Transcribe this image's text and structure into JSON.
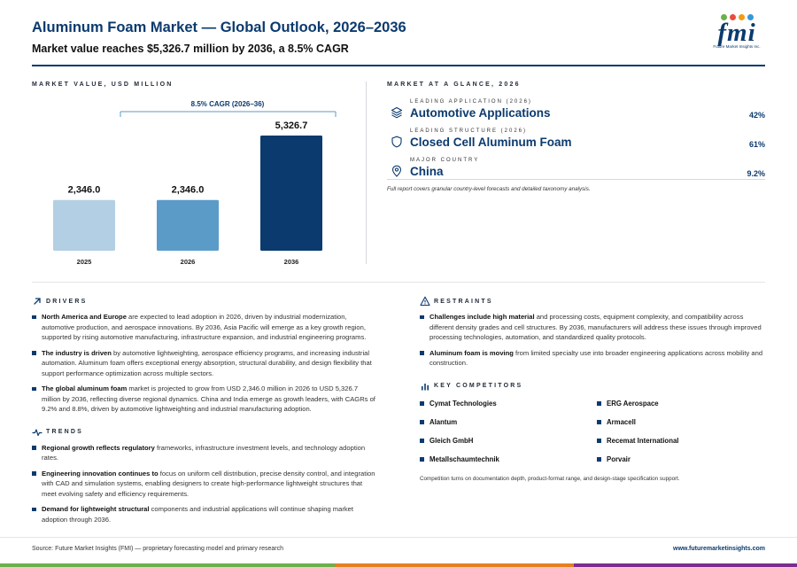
{
  "header": {
    "title": "Aluminum Foam Market — Global Outlook, 2026–2036",
    "subtitle": "Market value reaches $5,326.7 million by 2036, a 8.5% CAGR",
    "logo": {
      "word": "fmi",
      "tagline": "Future Market Insights Inc.",
      "dot_colors": [
        "#6ab04c",
        "#e84c3d",
        "#f39c12",
        "#3498db"
      ]
    }
  },
  "market_value": {
    "label": "MARKET VALUE, USD MILLION",
    "cagr_label": "8.5% CAGR (2026–36)"
  },
  "chart_data": {
    "type": "bar",
    "categories": [
      "2025",
      "2026",
      "2036"
    ],
    "values": [
      2346.0,
      2346.0,
      5326.7
    ],
    "value_labels": [
      "2,346.0",
      "2,346.0",
      "5,326.7"
    ],
    "colors": [
      "#b3cfe3",
      "#5b9bc8",
      "#0b3a6e"
    ],
    "title": "MARKET VALUE, USD MILLION",
    "annotation": "8.5% CAGR (2026–36)",
    "ylim": [
      0,
      5326.7
    ],
    "grid": false
  },
  "glance": {
    "label": "MARKET AT A GLANCE, 2026",
    "items": [
      {
        "kicker": "LEADING APPLICATION (2026)",
        "value": "Automotive Applications",
        "stat": "42%",
        "icon": "layers-icon"
      },
      {
        "kicker": "LEADING STRUCTURE (2026)",
        "value": "Closed Cell Aluminum Foam",
        "stat": "61%",
        "icon": "shield-icon"
      },
      {
        "kicker": "MAJOR COUNTRY",
        "value": "China",
        "stat": "9.2%",
        "icon": "location-pin-icon"
      }
    ],
    "note": "Full report covers granular country-level forecasts and detailed taxonomy analysis."
  },
  "drivers": {
    "label": "DRIVERS",
    "items": [
      {
        "bold": "North America and Europe",
        "text": " are expected to lead adoption in 2026, driven by industrial modernization, automotive production, and aerospace innovations. By 2036, Asia Pacific will emerge as a key growth region, supported by rising automotive manufacturing, infrastructure expansion, and industrial engineering programs."
      },
      {
        "bold": "The industry is driven",
        "text": " by automotive lightweighting, aerospace efficiency programs, and increasing industrial automation. Aluminum foam offers exceptional energy absorption, structural durability, and design flexibility that support performance optimization across multiple sectors."
      },
      {
        "bold": "The global aluminum foam",
        "text": " market is projected to grow from USD 2,346.0 million in 2026 to USD 5,326.7 million by 2036, reflecting diverse regional dynamics. China and India emerge as growth leaders, with CAGRs of 9.2% and 8.8%, driven by automotive lightweighting and industrial manufacturing adoption."
      }
    ]
  },
  "trends": {
    "label": "TRENDS",
    "items": [
      {
        "bold": "Regional growth reflects regulatory",
        "text": " frameworks, infrastructure investment levels, and technology adoption rates."
      },
      {
        "bold": "Engineering innovation continues to",
        "text": " focus on uniform cell distribution, precise density control, and integration with CAD and simulation systems, enabling designers to create high-performance lightweight structures that meet evolving safety and efficiency requirements."
      },
      {
        "bold": "Demand for lightweight structural",
        "text": " components and industrial applications will continue shaping market adoption through 2036."
      }
    ]
  },
  "restraints": {
    "label": "RESTRAINTS",
    "items": [
      {
        "bold": "Challenges include high material",
        "text": " and processing costs, equipment complexity, and compatibility across different density grades and cell structures. By 2036, manufacturers will address these issues through improved processing technologies, automation, and standardized quality protocols."
      },
      {
        "bold": "Aluminum foam is moving",
        "text": " from limited specialty use into broader engineering applications across mobility and construction."
      }
    ]
  },
  "competitors": {
    "label": "KEY COMPETITORS",
    "items": [
      "Cymat Technologies",
      "ERG Aerospace",
      "Alantum",
      "Armacell",
      "Gleich GmbH",
      "Recemat International",
      "Metallschaumtechnik",
      "Porvair"
    ],
    "note": "Competition turns on documentation depth, product-format range, and design-stage specification support."
  },
  "footer": {
    "source": "Source: Future Market Insights (FMI) — proprietary forecasting model and primary research",
    "url": "www.futuremarketinsights.com",
    "bar_colors": [
      "#6ab04c",
      "#e67e22",
      "#7b2d8e"
    ]
  }
}
